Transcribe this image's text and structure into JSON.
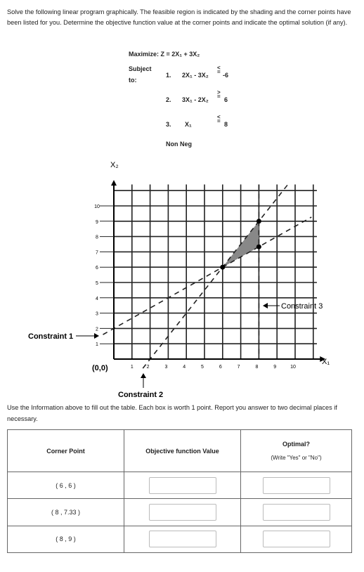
{
  "intro": "Solve the following linear program graphically. The feasible region is indicated by the shading and the corner points have been listed for you. Determine the objective function value at the corner points and indicate the optimal solution (if any).",
  "lp": {
    "maximize_label": "Maximize: Z = 2X₁ + 3X₂",
    "subject": "Subject",
    "to": "to:",
    "c1_num": "1.",
    "c1_lhs": "2X₁ - 3X₂",
    "c1_sym": "<",
    "c1_eq": "=",
    "c1_rhs": "-6",
    "c2_num": "2.",
    "c2_lhs": "3X₁ - 2X₂",
    "c2_sym": ">",
    "c2_eq": "=",
    "c2_rhs": "6",
    "c3_num": "3.",
    "c3_lhs": "X₁",
    "c3_sym": "<",
    "c3_eq": "=",
    "c3_rhs": "8",
    "nonneg": "Non Neg"
  },
  "graph": {
    "y_axis_label": "X₂",
    "x_axis_label": "X₁",
    "origin_label": "(0,0)",
    "x_ticks": [
      "1",
      "2",
      "3",
      "4",
      "5",
      "6",
      "7",
      "8",
      "9",
      "10"
    ],
    "y_ticks": [
      "1",
      "2",
      "3",
      "4",
      "5",
      "6",
      "7",
      "8",
      "9",
      "10"
    ],
    "constraint1_label": "Constraint 1",
    "constraint2_label": "Constraint 2",
    "constraint3_label": "Constraint 3",
    "feasible": [
      [
        6,
        6
      ],
      [
        8,
        9
      ],
      [
        8,
        7.33
      ]
    ],
    "corner_points": [
      [
        6,
        6
      ],
      [
        8,
        9
      ],
      [
        8,
        7.33
      ]
    ],
    "shade_color": "#888888"
  },
  "instructions": "Use the Information above to fill out the table. Each box is worth 1 point. Report you answer to two decimal places if necessary.",
  "table": {
    "col1": "Corner Point",
    "col2": "Objective function Value",
    "col3_title": "Optimal?",
    "col3_hint": "(Write \"Yes\" or \"No\")",
    "rows": [
      {
        "point": "( 6 , 6 )"
      },
      {
        "point": "( 8 , 7.33 )"
      },
      {
        "point": "( 8 , 9 )"
      }
    ]
  }
}
